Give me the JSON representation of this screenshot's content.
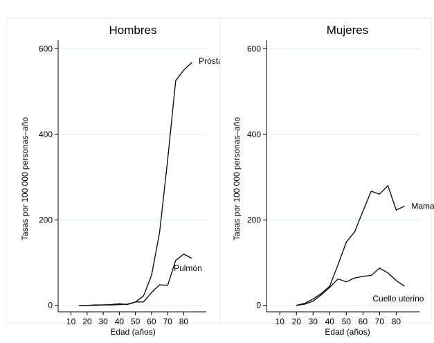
{
  "chart_data": [
    {
      "type": "line",
      "title": "Hombres",
      "xlabel": "Edad (años)",
      "ylabel": "Tasas por 100 000 personas–año",
      "xticks": [
        10,
        20,
        30,
        40,
        50,
        60,
        70,
        80
      ],
      "yticks": [
        0,
        200,
        400,
        600
      ],
      "xlim": [
        2,
        94
      ],
      "ylim": [
        -15,
        620
      ],
      "grid": true,
      "series": [
        {
          "name": "Próstata",
          "x": [
            15,
            20,
            25,
            30,
            35,
            40,
            45,
            50,
            55,
            60,
            65,
            70,
            75,
            80,
            85
          ],
          "y": [
            0,
            0,
            0,
            1,
            1,
            2,
            3,
            8,
            22,
            70,
            170,
            340,
            525,
            550,
            568
          ]
        },
        {
          "name": "Pulmón",
          "x": [
            15,
            20,
            25,
            30,
            35,
            40,
            45,
            50,
            55,
            60,
            65,
            70,
            75,
            80,
            85
          ],
          "y": [
            0,
            0,
            1,
            1,
            2,
            4,
            2,
            8,
            8,
            30,
            48,
            47,
            105,
            120,
            110
          ]
        }
      ]
    },
    {
      "type": "line",
      "title": "Mujeres",
      "xlabel": "Edad (años)",
      "ylabel": "Tasas por 100 000 personas–año",
      "xticks": [
        10,
        20,
        30,
        40,
        50,
        60,
        70,
        80
      ],
      "yticks": [
        0,
        200,
        400,
        600
      ],
      "xlim": [
        2,
        94
      ],
      "ylim": [
        -15,
        620
      ],
      "grid": true,
      "series": [
        {
          "name": "Mama",
          "x": [
            20,
            25,
            30,
            35,
            40,
            45,
            50,
            55,
            60,
            65,
            70,
            75,
            80,
            85
          ],
          "y": [
            0,
            5,
            15,
            28,
            45,
            95,
            148,
            172,
            220,
            267,
            260,
            280,
            223,
            232
          ]
        },
        {
          "name": "Cuello uterino",
          "x": [
            20,
            25,
            30,
            35,
            40,
            45,
            50,
            55,
            60,
            65,
            70,
            75,
            80,
            85
          ],
          "y": [
            0,
            3,
            10,
            25,
            42,
            62,
            55,
            64,
            68,
            70,
            87,
            76,
            58,
            45
          ]
        }
      ]
    }
  ]
}
